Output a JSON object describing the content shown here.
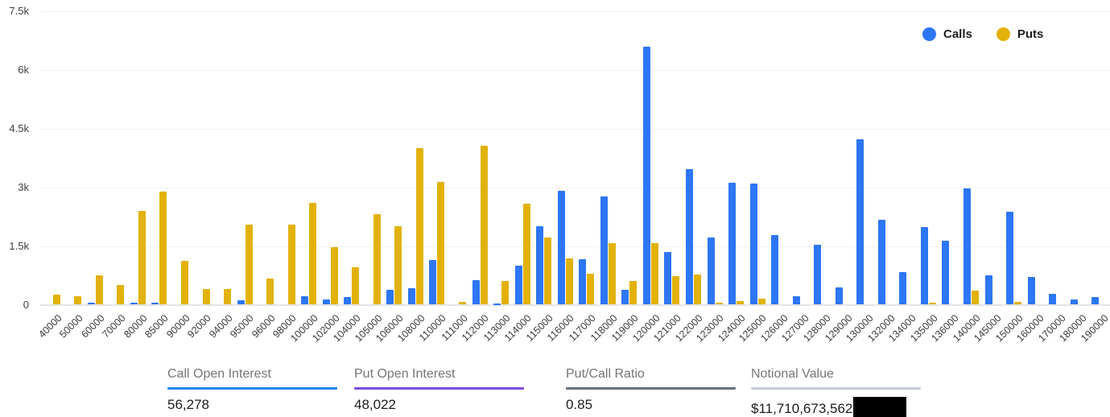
{
  "legend": {
    "calls": "Calls",
    "puts": "Puts"
  },
  "chart_data": {
    "type": "bar",
    "title": "",
    "xlabel": "",
    "ylabel": "",
    "grid": true,
    "legend_position": "top-right",
    "ylim": [
      0,
      7500
    ],
    "yticks": [
      {
        "v": 0,
        "label": "0"
      },
      {
        "v": 1500,
        "label": "1.5k"
      },
      {
        "v": 3000,
        "label": "3k"
      },
      {
        "v": 4500,
        "label": "4.5k"
      },
      {
        "v": 6000,
        "label": "6k"
      },
      {
        "v": 7500,
        "label": "7.5k"
      }
    ],
    "categories": [
      "40000",
      "50000",
      "60000",
      "70000",
      "80000",
      "85000",
      "90000",
      "92000",
      "94000",
      "95000",
      "96000",
      "98000",
      "100000",
      "102000",
      "104000",
      "105000",
      "106000",
      "108000",
      "110000",
      "111000",
      "112000",
      "113000",
      "114000",
      "115000",
      "116000",
      "117000",
      "118000",
      "119000",
      "120000",
      "121000",
      "122000",
      "123000",
      "124000",
      "125000",
      "126000",
      "127000",
      "128000",
      "129000",
      "130000",
      "132000",
      "134000",
      "135000",
      "136000",
      "140000",
      "145000",
      "150000",
      "160000",
      "170000",
      "180000",
      "190000"
    ],
    "series": [
      {
        "name": "Calls",
        "color": "#2d76f5",
        "values": [
          0,
          0,
          60,
          0,
          50,
          60,
          0,
          0,
          0,
          110,
          0,
          0,
          220,
          140,
          200,
          0,
          380,
          420,
          1140,
          0,
          620,
          30,
          1000,
          2000,
          2910,
          1170,
          2770,
          380,
          6600,
          1340,
          3460,
          1720,
          3120,
          3090,
          1770,
          220,
          1530,
          440,
          4230,
          2180,
          840,
          1990,
          1640,
          2980,
          760,
          2370,
          710,
          280,
          130,
          200
        ]
      },
      {
        "name": "Puts",
        "color": "#e2b20a",
        "values": [
          250,
          220,
          760,
          500,
          2390,
          2900,
          1120,
          410,
          410,
          2050,
          660,
          2050,
          2600,
          1480,
          960,
          2310,
          2000,
          4010,
          3130,
          80,
          4070,
          600,
          2580,
          1720,
          1180,
          790,
          1580,
          610,
          1570,
          730,
          780,
          50,
          100,
          150,
          0,
          0,
          0,
          0,
          0,
          0,
          0,
          50,
          0,
          350,
          0,
          70,
          0,
          0,
          0,
          0
        ]
      }
    ]
  },
  "stats": [
    {
      "label": "Call Open Interest",
      "value": "56,278",
      "underline_color": "#2085f1"
    },
    {
      "label": "Put Open Interest",
      "value": "48,022",
      "underline_color": "#7a4fe0"
    },
    {
      "label": "Put/Call Ratio",
      "value": "0.85",
      "underline_color": "#667080"
    },
    {
      "label": "Notional Value",
      "value": "$11,710,673,562",
      "underline_color": "#c5cbd3",
      "redacted": true
    }
  ]
}
